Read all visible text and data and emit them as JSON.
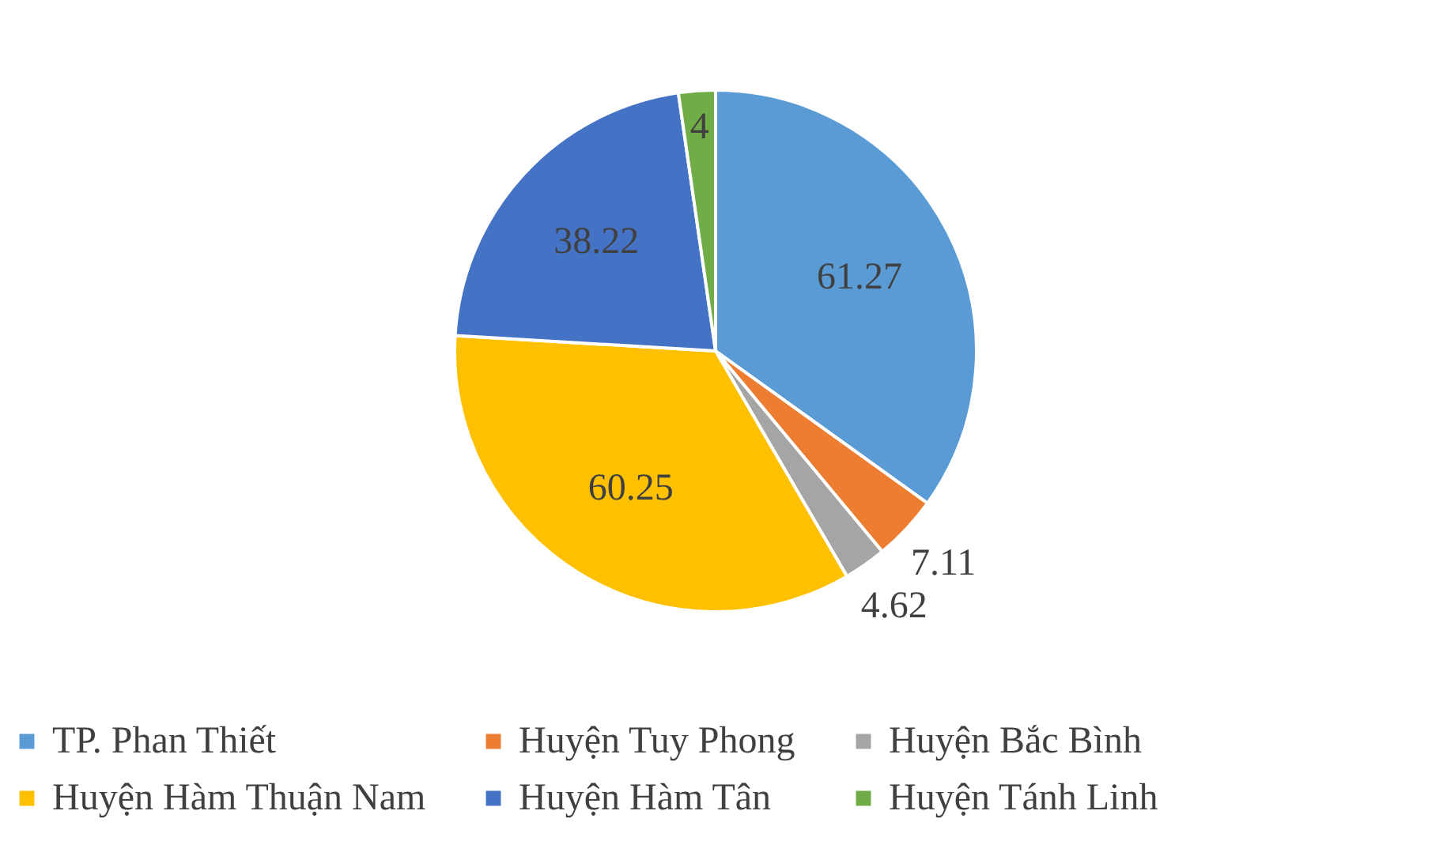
{
  "chart_data": {
    "type": "pie",
    "categories": [
      "TP. Phan Thiết",
      "Huyện Tuy Phong",
      "Huyện Bắc Bình",
      "Huyện Hàm Thuận Nam",
      "Huyện Hàm Tân",
      "Huyện Tánh Linh"
    ],
    "values": [
      61.27,
      7.11,
      4.62,
      60.25,
      38.22,
      4
    ],
    "colors": [
      "#5b9bd5",
      "#ed7d31",
      "#a5a5a5",
      "#ffc000",
      "#4472c4",
      "#70ad47"
    ],
    "data_labels": true,
    "legend": "bottom"
  }
}
